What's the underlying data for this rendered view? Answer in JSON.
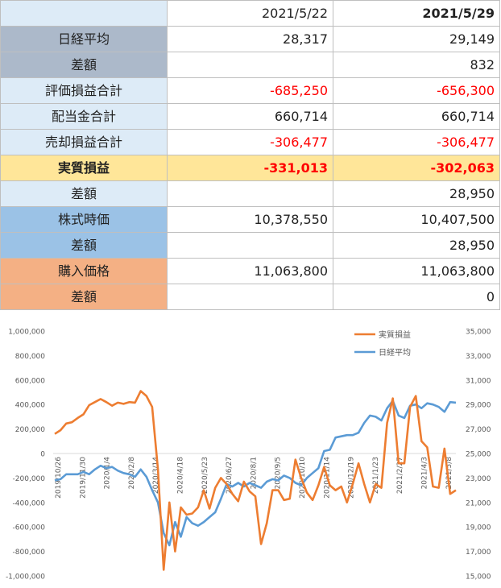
{
  "table": {
    "headers": [
      "",
      "2021/5/22",
      "2021/5/29"
    ],
    "rows": [
      {
        "label": "日経平均",
        "v1": "28,317",
        "v2": "29,149"
      },
      {
        "label": "差額",
        "v1": "",
        "v2": "832"
      },
      {
        "label": "評価損益合計",
        "v1": "-685,250",
        "v2": "-656,300"
      },
      {
        "label": "配当金合計",
        "v1": "660,714",
        "v2": "660,714"
      },
      {
        "label": "売却損益合計",
        "v1": "-306,477",
        "v2": "-306,477"
      },
      {
        "label": "実質損益",
        "v1": "-331,013",
        "v2": "-302,063"
      },
      {
        "label": "差額",
        "v1": "",
        "v2": "28,950"
      },
      {
        "label": "株式時価",
        "v1": "10,378,550",
        "v2": "10,407,500"
      },
      {
        "label": "差額",
        "v1": "",
        "v2": "28,950"
      },
      {
        "label": "購入価格",
        "v1": "11,063,800",
        "v2": "11,063,800"
      },
      {
        "label": "差額",
        "v1": "",
        "v2": "0"
      }
    ]
  },
  "colors": {
    "label_grey": "#acb9ca",
    "label_lightblue": "#ddebf7",
    "label_yellow": "#ffe699",
    "label_blue": "#9bc2e6",
    "label_orange": "#f4b084",
    "negative": "#ff0000",
    "series_real": "#ed7d31",
    "series_nikkei": "#5b9bd5"
  },
  "chart_data": {
    "type": "line",
    "legend_position": "top-right",
    "grid": false,
    "x_tick_labels": [
      "2019/10/26",
      "2019/11/30",
      "2020/1/4",
      "2020/2/8",
      "2020/3/14",
      "2020/4/18",
      "2020/5/23",
      "2020/6/27",
      "2020/8/1",
      "2020/9/5",
      "2020/10/10",
      "2020/11/14",
      "2020/12/19",
      "2021/1/23",
      "2021/2/27",
      "2021/4/3",
      "2021/5/8"
    ],
    "y_left": {
      "min": -1000000,
      "max": 1000000,
      "tick_labels": [
        "1,000,000",
        "800,000",
        "600,000",
        "400,000",
        "200,000",
        "0",
        "-200,000",
        "-400,000",
        "-600,000",
        "-800,000",
        "-1,000,000"
      ]
    },
    "y_right": {
      "min": 15000,
      "max": 35000,
      "tick_labels": [
        "35,000",
        "33,000",
        "31,000",
        "29,000",
        "27,000",
        "25,000",
        "23,000",
        "21,000",
        "19,000",
        "17,000",
        "15,000"
      ]
    },
    "series": [
      {
        "name": "実質損益",
        "axis": "left",
        "values": [
          160000,
          190000,
          245000,
          255000,
          290000,
          320000,
          395000,
          420000,
          445000,
          420000,
          390000,
          415000,
          405000,
          420000,
          415000,
          510000,
          470000,
          380000,
          -130000,
          -950000,
          -400000,
          -800000,
          -440000,
          -500000,
          -490000,
          -440000,
          -300000,
          -450000,
          -280000,
          -200000,
          -250000,
          -330000,
          -390000,
          -230000,
          -310000,
          -350000,
          -740000,
          -570000,
          -300000,
          -300000,
          -380000,
          -370000,
          -50000,
          -200000,
          -320000,
          -380000,
          -260000,
          -110000,
          -260000,
          -300000,
          -270000,
          -400000,
          -250000,
          -80000,
          -250000,
          -400000,
          -250000,
          -280000,
          250000,
          450000,
          -80000,
          -80000,
          380000,
          470000,
          100000,
          50000,
          -270000,
          -280000,
          40000,
          -330000,
          -300000
        ]
      },
      {
        "name": "日経平均",
        "axis": "right",
        "values": [
          22800,
          22900,
          23300,
          23300,
          23300,
          23500,
          23300,
          23700,
          24000,
          23800,
          23900,
          23600,
          23400,
          23300,
          23100,
          23700,
          23100,
          22000,
          21000,
          18500,
          17500,
          19400,
          18200,
          19800,
          19300,
          19100,
          19400,
          19800,
          20200,
          21300,
          22500,
          22300,
          22600,
          22300,
          22600,
          22400,
          22200,
          22700,
          22900,
          22800,
          23200,
          23000,
          22600,
          22400,
          23000,
          23400,
          23800,
          25200,
          25300,
          26300,
          26400,
          26500,
          26500,
          26700,
          27500,
          28100,
          28000,
          27700,
          28700,
          29300,
          28100,
          27900,
          28900,
          29000,
          28700,
          29100,
          29000,
          28800,
          28400,
          29200,
          29150
        ]
      }
    ]
  }
}
